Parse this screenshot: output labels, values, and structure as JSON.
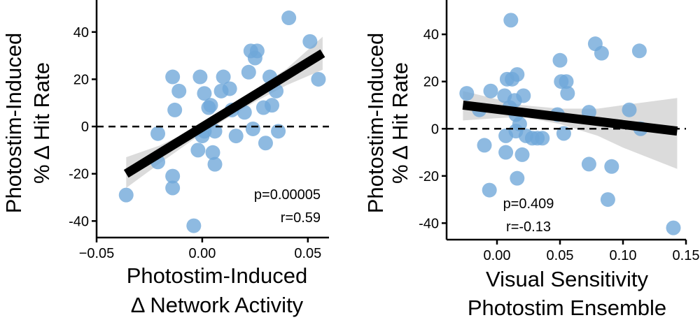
{
  "chart_data": [
    {
      "type": "scatter",
      "title": "",
      "xlabel": [
        "Photostim-Induced",
        "Δ Network Activity"
      ],
      "ylabel": [
        "Photostim-Induced",
        "% Δ Hit Rate"
      ],
      "xlim": [
        -0.05,
        0.06
      ],
      "ylim": [
        -47,
        50
      ],
      "xticks": [
        -0.05,
        0.0,
        0.05
      ],
      "xtick_labels": [
        "−0.05",
        "0.00",
        "0.05"
      ],
      "yticks": [
        40,
        20,
        0,
        -20,
        -40
      ],
      "ytick_labels": [
        "40",
        "20",
        "0",
        "-20",
        "-40"
      ],
      "zero_line": true,
      "grid": false,
      "point_color": "#6ea6d8",
      "fit": {
        "x": [
          -0.036,
          0.057
        ],
        "y": [
          -20.0,
          31.0
        ],
        "color": "#000000"
      },
      "ci_band": {
        "x": [
          -0.036,
          -0.02,
          -0.005,
          0.003,
          0.01,
          0.025,
          0.04,
          0.057
        ],
        "lower": [
          -26.0,
          -15.5,
          -6.0,
          -1.5,
          2.5,
          10.5,
          17.5,
          24.0
        ],
        "upper": [
          -13.0,
          -8.0,
          -1.5,
          2.5,
          6.5,
          15.5,
          24.5,
          38.0
        ],
        "color": "#d9d9d9"
      },
      "stats": [
        "p=0.00005",
        "r=0.59"
      ],
      "points": [
        {
          "x": -0.036,
          "y": -29
        },
        {
          "x": -0.021,
          "y": -3
        },
        {
          "x": -0.021,
          "y": -15
        },
        {
          "x": -0.014,
          "y": -21
        },
        {
          "x": -0.014,
          "y": -26
        },
        {
          "x": -0.013,
          "y": 7
        },
        {
          "x": -0.014,
          "y": 21
        },
        {
          "x": -0.011,
          "y": 15
        },
        {
          "x": -0.004,
          "y": -42
        },
        {
          "x": -0.001,
          "y": 21
        },
        {
          "x": -0.002,
          "y": -10
        },
        {
          "x": 0.0,
          "y": -4
        },
        {
          "x": 0.001,
          "y": -2
        },
        {
          "x": 0.001,
          "y": 14
        },
        {
          "x": 0.003,
          "y": 8
        },
        {
          "x": 0.004,
          "y": 9
        },
        {
          "x": 0.005,
          "y": -11
        },
        {
          "x": 0.006,
          "y": -16
        },
        {
          "x": 0.006,
          "y": -2
        },
        {
          "x": 0.009,
          "y": 15
        },
        {
          "x": 0.01,
          "y": 21
        },
        {
          "x": 0.013,
          "y": 16
        },
        {
          "x": 0.014,
          "y": 7
        },
        {
          "x": 0.016,
          "y": -4
        },
        {
          "x": 0.02,
          "y": 6
        },
        {
          "x": 0.022,
          "y": 23
        },
        {
          "x": 0.023,
          "y": 32
        },
        {
          "x": 0.024,
          "y": -1
        },
        {
          "x": 0.025,
          "y": 29
        },
        {
          "x": 0.026,
          "y": 32
        },
        {
          "x": 0.029,
          "y": 8
        },
        {
          "x": 0.03,
          "y": -7
        },
        {
          "x": 0.032,
          "y": 21
        },
        {
          "x": 0.033,
          "y": 9
        },
        {
          "x": 0.035,
          "y": 15
        },
        {
          "x": 0.036,
          "y": -2
        },
        {
          "x": 0.041,
          "y": 46
        },
        {
          "x": 0.051,
          "y": 36
        },
        {
          "x": 0.055,
          "y": 20
        }
      ]
    },
    {
      "type": "scatter",
      "title": "",
      "xlabel": [
        "Visual Sensitivity",
        "Photostim Ensemble"
      ],
      "ylabel": [
        "Photostim-Induced",
        "% Δ Hit Rate"
      ],
      "xlim": [
        -0.04,
        0.15
      ],
      "ylim": [
        -47,
        51
      ],
      "xticks": [
        0.0,
        0.05,
        0.1,
        0.15
      ],
      "xtick_labels": [
        "0.00",
        "0.05",
        "0.10",
        "0.15"
      ],
      "yticks": [
        40,
        20,
        0,
        -20,
        -40
      ],
      "ytick_labels": [
        "40",
        "20",
        "0",
        "-20",
        "-40"
      ],
      "zero_line": true,
      "grid": false,
      "point_color": "#6ea6d8",
      "fit": {
        "x": [
          -0.027,
          0.143
        ],
        "y": [
          10.0,
          -1.0
        ],
        "color": "#000000"
      },
      "ci_band": {
        "x": [
          -0.027,
          0.0,
          0.02,
          0.05,
          0.08,
          0.1,
          0.143
        ],
        "lower": [
          3.5,
          4.5,
          5.0,
          2.0,
          -3.0,
          -8.0,
          -17.0
        ],
        "upper": [
          16.0,
          12.5,
          10.0,
          8.5,
          8.5,
          10.0,
          13.0
        ],
        "color": "#d9d9d9"
      },
      "stats": [
        "p=0.409",
        "r=-0.13"
      ],
      "points": [
        {
          "x": -0.024,
          "y": 15
        },
        {
          "x": -0.014,
          "y": 8
        },
        {
          "x": -0.01,
          "y": -7
        },
        {
          "x": -0.006,
          "y": -26
        },
        {
          "x": -0.005,
          "y": 16
        },
        {
          "x": 0.006,
          "y": 14
        },
        {
          "x": 0.007,
          "y": -10
        },
        {
          "x": 0.007,
          "y": -3
        },
        {
          "x": 0.008,
          "y": 21
        },
        {
          "x": 0.01,
          "y": 9
        },
        {
          "x": 0.011,
          "y": 46
        },
        {
          "x": 0.012,
          "y": 21
        },
        {
          "x": 0.014,
          "y": 12
        },
        {
          "x": 0.015,
          "y": 6
        },
        {
          "x": 0.015,
          "y": -1
        },
        {
          "x": 0.016,
          "y": 23
        },
        {
          "x": 0.016,
          "y": -21
        },
        {
          "x": 0.018,
          "y": 2
        },
        {
          "x": 0.02,
          "y": -11
        },
        {
          "x": 0.021,
          "y": 14
        },
        {
          "x": 0.023,
          "y": -3
        },
        {
          "x": 0.028,
          "y": -4
        },
        {
          "x": 0.032,
          "y": -4
        },
        {
          "x": 0.036,
          "y": -4
        },
        {
          "x": 0.048,
          "y": 6
        },
        {
          "x": 0.05,
          "y": 29
        },
        {
          "x": 0.051,
          "y": 20
        },
        {
          "x": 0.053,
          "y": -2
        },
        {
          "x": 0.055,
          "y": 20
        },
        {
          "x": 0.056,
          "y": 15
        },
        {
          "x": 0.073,
          "y": 7
        },
        {
          "x": 0.073,
          "y": -15
        },
        {
          "x": 0.078,
          "y": 36
        },
        {
          "x": 0.083,
          "y": 32
        },
        {
          "x": 0.088,
          "y": -30
        },
        {
          "x": 0.091,
          "y": -16
        },
        {
          "x": 0.105,
          "y": 8
        },
        {
          "x": 0.113,
          "y": 33
        },
        {
          "x": 0.114,
          "y": 0
        },
        {
          "x": 0.14,
          "y": -42
        }
      ]
    }
  ]
}
